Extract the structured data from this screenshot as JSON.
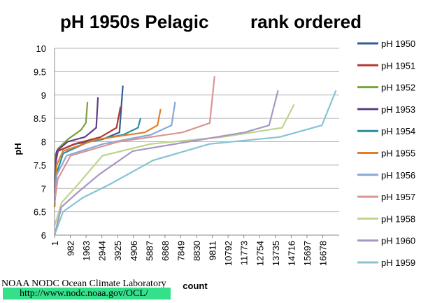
{
  "chart_data": {
    "type": "line",
    "title_left": "pH 1950s Pelagic",
    "title_right": "rank ordered",
    "xlabel": "count",
    "ylabel": "pH",
    "ylim": [
      6,
      10
    ],
    "yticks": [
      "6",
      "6.5",
      "7",
      "7.5",
      "8",
      "8.5",
      "9",
      "9.5",
      "10"
    ],
    "xlim": [
      1,
      17700
    ],
    "xtick_labels": [
      "1",
      "982",
      "1963",
      "2944",
      "3925",
      "4906",
      "5887",
      "6868",
      "7849",
      "8830",
      "9811",
      "10792",
      "11773",
      "12754",
      "13735",
      "14716",
      "15697",
      "16678"
    ],
    "grid": "horizontal",
    "legend_position": "right",
    "series": [
      {
        "name": "pH 1950",
        "color": "#2e5f95",
        "n": 4250,
        "points": [
          [
            0,
            6.6
          ],
          [
            0.01,
            7.5
          ],
          [
            0.05,
            7.8
          ],
          [
            0.3,
            7.95
          ],
          [
            0.7,
            8.05
          ],
          [
            0.95,
            8.2
          ],
          [
            1,
            9.2
          ]
        ]
      },
      {
        "name": "pH 1951",
        "color": "#b23a33",
        "n": 4100,
        "points": [
          [
            0,
            6.9
          ],
          [
            0.01,
            7.5
          ],
          [
            0.05,
            7.8
          ],
          [
            0.3,
            7.95
          ],
          [
            0.7,
            8.1
          ],
          [
            0.94,
            8.3
          ],
          [
            1,
            8.75
          ]
        ]
      },
      {
        "name": "pH 1952",
        "color": "#7ba23d",
        "n": 2050,
        "points": [
          [
            0,
            7.2
          ],
          [
            0.02,
            7.7
          ],
          [
            0.1,
            7.85
          ],
          [
            0.4,
            8.05
          ],
          [
            0.8,
            8.25
          ],
          [
            0.95,
            8.4
          ],
          [
            1,
            8.85
          ]
        ]
      },
      {
        "name": "pH 1953",
        "color": "#5e3f87",
        "n": 2700,
        "points": [
          [
            0,
            7.0
          ],
          [
            0.01,
            7.4
          ],
          [
            0.05,
            7.8
          ],
          [
            0.3,
            8.0
          ],
          [
            0.7,
            8.1
          ],
          [
            0.96,
            8.3
          ],
          [
            1,
            8.95
          ]
        ]
      },
      {
        "name": "pH 1954",
        "color": "#2a8ea5",
        "n": 5350,
        "points": [
          [
            0,
            6.6
          ],
          [
            0.02,
            7.3
          ],
          [
            0.1,
            7.75
          ],
          [
            0.4,
            8.0
          ],
          [
            0.8,
            8.15
          ],
          [
            0.97,
            8.3
          ],
          [
            1,
            8.5
          ]
        ]
      },
      {
        "name": "pH 1955",
        "color": "#e07f28",
        "n": 6600,
        "points": [
          [
            0,
            6.6
          ],
          [
            0.02,
            7.5
          ],
          [
            0.08,
            7.8
          ],
          [
            0.4,
            8.05
          ],
          [
            0.85,
            8.2
          ],
          [
            0.97,
            8.35
          ],
          [
            1,
            8.7
          ]
        ]
      },
      {
        "name": "pH 1956",
        "color": "#8aa8d6",
        "n": 7500,
        "points": [
          [
            0,
            6.8
          ],
          [
            0.02,
            7.3
          ],
          [
            0.1,
            7.7
          ],
          [
            0.4,
            7.95
          ],
          [
            0.8,
            8.15
          ],
          [
            0.97,
            8.35
          ],
          [
            1,
            8.85
          ]
        ]
      },
      {
        "name": "pH 1957",
        "color": "#d99692",
        "n": 9950,
        "points": [
          [
            0,
            6.7
          ],
          [
            0.02,
            7.2
          ],
          [
            0.1,
            7.7
          ],
          [
            0.4,
            8.0
          ],
          [
            0.8,
            8.2
          ],
          [
            0.97,
            8.4
          ],
          [
            1,
            9.4
          ]
        ]
      },
      {
        "name": "pH 1958",
        "color": "#bcd68c",
        "n": 14900,
        "points": [
          [
            0,
            6.2
          ],
          [
            0.03,
            6.7
          ],
          [
            0.1,
            7.1
          ],
          [
            0.2,
            7.7
          ],
          [
            0.4,
            7.95
          ],
          [
            0.7,
            8.1
          ],
          [
            0.95,
            8.3
          ],
          [
            1,
            8.8
          ]
        ]
      },
      {
        "name": "pH 1960",
        "color": "#a796c3",
        "n": 13900,
        "points": [
          [
            0,
            6.0
          ],
          [
            0.03,
            6.6
          ],
          [
            0.1,
            6.9
          ],
          [
            0.2,
            7.3
          ],
          [
            0.35,
            7.8
          ],
          [
            0.6,
            8.0
          ],
          [
            0.85,
            8.2
          ],
          [
            0.96,
            8.35
          ],
          [
            1,
            9.1
          ]
        ]
      },
      {
        "name": "pH 1959",
        "color": "#86c3d4",
        "n": 17500,
        "points": [
          [
            0,
            6.0
          ],
          [
            0.03,
            6.5
          ],
          [
            0.1,
            6.8
          ],
          [
            0.2,
            7.1
          ],
          [
            0.35,
            7.6
          ],
          [
            0.55,
            7.95
          ],
          [
            0.8,
            8.1
          ],
          [
            0.95,
            8.35
          ],
          [
            1,
            9.1
          ]
        ]
      }
    ]
  },
  "footer": {
    "credit": "NOAA NODC Ocean Climate Laboratory",
    "url": "http://www.nodc.noaa.gov/OCL/"
  }
}
